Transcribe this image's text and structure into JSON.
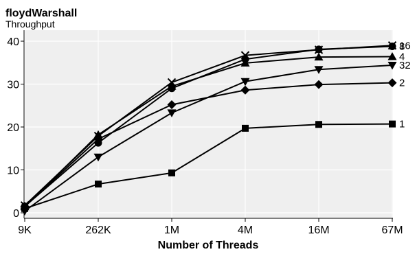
{
  "chart_data": {
    "type": "line",
    "title": "floydWarshall",
    "subtitle": "Throughput",
    "xlabel": "Number of Threads",
    "ylabel": "",
    "categories": [
      "9K",
      "262K",
      "1M",
      "4M",
      "16M",
      "67M"
    ],
    "ylim": [
      0,
      40
    ],
    "yticks": [
      0,
      10,
      20,
      30,
      40
    ],
    "grid": true,
    "legend": "inline-right",
    "series": [
      {
        "name": "1",
        "marker": "square",
        "values": [
          1.0,
          6.7,
          9.3,
          19.7,
          20.6,
          20.7
        ]
      },
      {
        "name": "2",
        "marker": "diamond",
        "values": [
          1.5,
          17.2,
          25.2,
          28.6,
          29.9,
          30.3
        ]
      },
      {
        "name": "4",
        "marker": "triangle-up",
        "values": [
          1.4,
          18.2,
          29.5,
          34.9,
          36.3,
          36.4
        ]
      },
      {
        "name": "8",
        "marker": "circle",
        "values": [
          1.5,
          16.3,
          29.0,
          35.8,
          38.1,
          38.8
        ]
      },
      {
        "name": "16",
        "marker": "x",
        "values": [
          1.7,
          17.9,
          30.4,
          36.7,
          38.0,
          39.0
        ]
      },
      {
        "name": "32",
        "marker": "triangle-down",
        "values": [
          0.4,
          13.0,
          23.3,
          30.6,
          33.4,
          34.4
        ]
      }
    ]
  }
}
